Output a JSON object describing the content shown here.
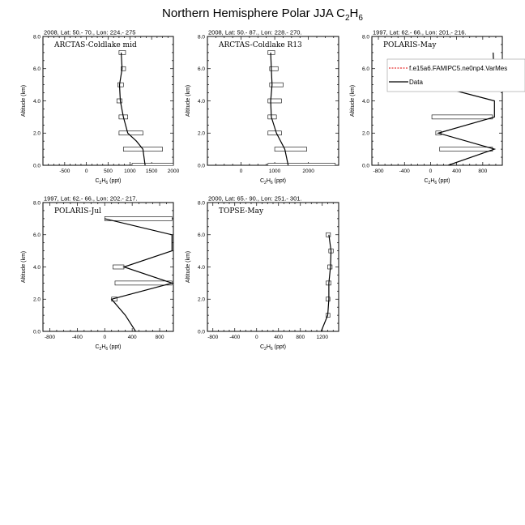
{
  "title": {
    "main": "Northern Hemisphere Polar JJA C",
    "sub": "2",
    "main2": "H",
    "sub2": "6"
  },
  "xaxis_label": {
    "base": "C",
    "s1": "2",
    "mid": "H",
    "s2": "6",
    "unit": " (ppt)"
  },
  "yaxis_label": "Altitude (km)",
  "legend": {
    "model": "f.e15a6.FAMIPC5.ne0np4.VarMes",
    "data": "Data",
    "model_color": "#e00000",
    "data_color": "#000000"
  },
  "chart_data": [
    {
      "type": "line",
      "header": "2008, Lat:  50.- 70., Lon: 224.- 275",
      "inner_label": "ARCTAS-Coldlake mid",
      "xlim": [
        -1000,
        2000
      ],
      "ylim": [
        0,
        8
      ],
      "xticks": [
        -500,
        0,
        500,
        1000,
        1500,
        2000
      ],
      "yticks": [
        0.0,
        2.0,
        4.0,
        6.0,
        8.0
      ],
      "profile": [
        [
          1350,
          0
        ],
        [
          1300,
          1
        ],
        [
          1150,
          1.5
        ],
        [
          950,
          2
        ],
        [
          850,
          3
        ],
        [
          780,
          4
        ],
        [
          760,
          5
        ],
        [
          820,
          6
        ],
        [
          800,
          7
        ]
      ],
      "bars": [
        [
          750,
          900,
          7
        ],
        [
          800,
          900,
          6
        ],
        [
          720,
          850,
          5
        ],
        [
          700,
          820,
          4
        ],
        [
          750,
          950,
          3
        ],
        [
          750,
          1300,
          2
        ],
        [
          850,
          1750,
          1
        ],
        [
          1050,
          2000,
          0
        ]
      ]
    },
    {
      "type": "line",
      "header": "2008, Lat:  50.- 87., Lon: 228.- 270.",
      "inner_label": "ARCTAS-Coldlake R13",
      "xlim": [
        -1000,
        2900
      ],
      "ylim": [
        0,
        8
      ],
      "xticks": [
        0,
        1000,
        2000
      ],
      "yticks": [
        0.0,
        2.0,
        4.0,
        6.0,
        8.0
      ],
      "profile": [
        [
          1400,
          0
        ],
        [
          1300,
          1
        ],
        [
          1050,
          2
        ],
        [
          900,
          3
        ],
        [
          880,
          4
        ],
        [
          920,
          5
        ],
        [
          900,
          6
        ],
        [
          880,
          7
        ]
      ],
      "bars": [
        [
          800,
          1000,
          7
        ],
        [
          850,
          1100,
          6
        ],
        [
          850,
          1250,
          5
        ],
        [
          800,
          1200,
          4
        ],
        [
          800,
          1050,
          3
        ],
        [
          800,
          1200,
          2
        ],
        [
          1000,
          1950,
          1
        ],
        [
          800,
          2800,
          0
        ]
      ]
    },
    {
      "type": "line",
      "header": "1997, Lat: 62.- 66., Lon: 201.- 216.",
      "inner_label": "POLARIS-May",
      "xlim": [
        -900,
        1100
      ],
      "ylim": [
        0,
        8
      ],
      "xticks": [
        -800,
        -400,
        0,
        400,
        800
      ],
      "yticks": [
        0.0,
        2.0,
        4.0,
        6.0,
        8.0
      ],
      "profile": [
        [
          270,
          0
        ],
        [
          980,
          1
        ],
        [
          120,
          2
        ],
        [
          980,
          3
        ],
        [
          980,
          4
        ],
        [
          30,
          5
        ],
        [
          970,
          6
        ],
        [
          960,
          7
        ]
      ],
      "bars": [
        [
          0,
          100,
          5
        ],
        [
          20,
          950,
          3
        ],
        [
          80,
          160,
          2
        ],
        [
          140,
          950,
          1
        ]
      ],
      "legend": true
    },
    {
      "type": "line",
      "header": "1997, Lat: 62.- 66., Lon: 202.- 217.",
      "inner_label": "POLARIS-Jul",
      "xlim": [
        -900,
        1000
      ],
      "ylim": [
        0,
        8
      ],
      "xticks": [
        -800,
        -400,
        0,
        400,
        800
      ],
      "yticks": [
        0.0,
        2.0,
        4.0,
        6.0,
        8.0
      ],
      "profile": [
        [
          450,
          0
        ],
        [
          300,
          1
        ],
        [
          100,
          2
        ],
        [
          980,
          3
        ],
        [
          280,
          4
        ],
        [
          980,
          5
        ],
        [
          980,
          6
        ],
        [
          0,
          7
        ]
      ],
      "bars": [
        [
          0,
          980,
          7
        ],
        [
          120,
          280,
          4
        ],
        [
          150,
          980,
          3
        ],
        [
          100,
          180,
          2
        ]
      ]
    },
    {
      "type": "line",
      "header": "2000, Lat: 65.- 90., Lon: 251.- 301.",
      "inner_label": "TOPSE-May",
      "xlim": [
        -900,
        1500
      ],
      "ylim": [
        0,
        8
      ],
      "xticks": [
        -800,
        -400,
        0,
        400,
        800,
        1200
      ],
      "yticks": [
        0.0,
        2.0,
        4.0,
        6.0,
        8.0
      ],
      "profile": [
        [
          1180,
          0
        ],
        [
          1300,
          1
        ],
        [
          1320,
          2
        ],
        [
          1320,
          3
        ],
        [
          1350,
          4
        ],
        [
          1360,
          5
        ],
        [
          1320,
          6
        ]
      ],
      "bars": [
        [
          1270,
          1340,
          1
        ],
        [
          1270,
          1340,
          2
        ],
        [
          1270,
          1360,
          3
        ],
        [
          1300,
          1380,
          4
        ],
        [
          1320,
          1400,
          5
        ],
        [
          1270,
          1350,
          6
        ]
      ]
    }
  ]
}
